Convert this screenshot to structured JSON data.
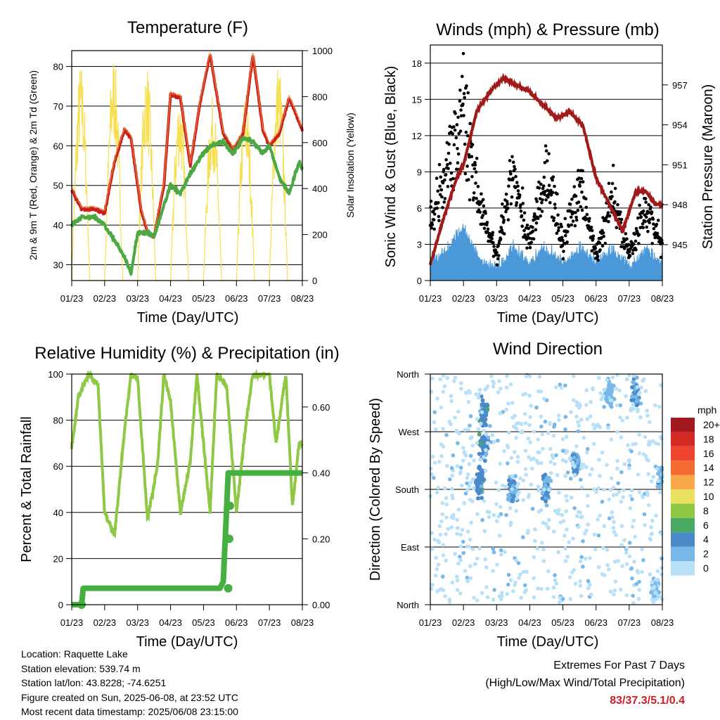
{
  "x_ticks": [
    "01/23",
    "02/23",
    "03/23",
    "04/23",
    "05/23",
    "06/23",
    "07/23",
    "08/23"
  ],
  "colors": {
    "temp2m": "#c81e1e",
    "temp9m": "#f08030",
    "dewpoint": "#4ca845",
    "solar": "#f7df50",
    "gust": "#000000",
    "wind": "#4a98d8",
    "pressure": "#a01a1a",
    "rh": "#8fc845",
    "precip": "#45b040"
  },
  "chart_data": [
    {
      "type": "line",
      "title": "Temperature (F)",
      "xlabel": "Time (Day/UTC)",
      "ylabel": "2m & 9m T (Red, Orange) & 2m Td (Green)",
      "y2label": "Solar Insolation (Yellow)",
      "x_ticks": [
        "01/23",
        "02/23",
        "03/23",
        "04/23",
        "05/23",
        "06/23",
        "07/23",
        "08/23"
      ],
      "ylim": [
        26,
        84
      ],
      "y_ticks": [
        30,
        40,
        50,
        60,
        70,
        80
      ],
      "y2lim": [
        0,
        1000
      ],
      "y2_ticks": [
        0,
        200,
        400,
        600,
        800,
        1000
      ],
      "grid": true,
      "series": [
        {
          "name": "2m T",
          "color": "#c81e1e",
          "x": [
            0,
            0.3,
            0.7,
            1.0,
            1.3,
            1.6,
            1.8,
            2.1,
            2.3,
            2.5,
            2.8,
            3.0,
            3.3,
            3.6,
            3.9,
            4.2,
            4.6,
            4.9,
            5.2,
            5.5,
            5.8,
            6.0,
            6.3,
            6.6,
            6.9,
            7.0
          ],
          "values": [
            49,
            44,
            44,
            43,
            56,
            64,
            62,
            44,
            38,
            37,
            50,
            73,
            72,
            55,
            71,
            83,
            63,
            59,
            63,
            83,
            64,
            60,
            63,
            72,
            66,
            64
          ]
        },
        {
          "name": "Td",
          "color": "#4ca845",
          "x": [
            0,
            0.3,
            0.7,
            1.0,
            1.3,
            1.6,
            1.8,
            2.0,
            2.3,
            2.5,
            2.8,
            3.0,
            3.3,
            3.6,
            3.9,
            4.2,
            4.6,
            4.9,
            5.2,
            5.5,
            5.8,
            6.0,
            6.3,
            6.6,
            6.9,
            7.0
          ],
          "values": [
            40,
            42,
            42,
            40,
            36,
            32,
            28,
            38,
            38,
            37,
            45,
            50,
            48,
            53,
            57,
            60,
            61,
            58,
            62,
            61,
            58,
            60,
            52,
            48,
            56,
            54
          ]
        },
        {
          "name": "Solar",
          "axis": "y2",
          "color": "#f7df50",
          "x": [
            0.15,
            0.55,
            1.0,
            1.5,
            2.0,
            2.5,
            3.0,
            3.5,
            4.0,
            4.5,
            5.0,
            5.5,
            6.0,
            6.5,
            7.0
          ],
          "values": [
            0,
            950,
            0,
            990,
            0,
            950,
            0,
            820,
            0,
            800,
            0,
            820,
            0,
            960,
            0
          ]
        }
      ]
    },
    {
      "type": "line",
      "title": "Winds (mph) & Pressure (mb)",
      "xlabel": "Time (Day/UTC)",
      "ylabel": "Sonic Wind & Gust (Blue, Black)",
      "y2label": "Station Pressure (Maroon)",
      "x_ticks": [
        "01/23",
        "02/23",
        "03/23",
        "04/23",
        "05/23",
        "06/23",
        "07/23",
        "08/23"
      ],
      "ylim": [
        0,
        19.5
      ],
      "y_ticks": [
        0,
        3,
        6,
        9,
        12,
        15,
        18
      ],
      "y2lim": [
        942.3,
        960.0
      ],
      "y2_ticks": [
        945,
        948,
        951,
        954,
        957
      ],
      "grid": true,
      "series": [
        {
          "name": "Gust",
          "color": "#000000",
          "x": [
            0,
            0.5,
            1.0,
            1.5,
            2.0,
            2.5,
            3.0,
            3.5,
            4.0,
            4.5,
            5.0,
            5.5,
            6.0,
            6.5,
            7.0
          ],
          "values": [
            5,
            9,
            14,
            6,
            2,
            9,
            3,
            9,
            3,
            8,
            2,
            7,
            2,
            6,
            3
          ]
        },
        {
          "name": "Wind",
          "color": "#4a98d8",
          "x": [
            0,
            0.5,
            1.0,
            1.5,
            2.0,
            2.5,
            3.0,
            3.5,
            4.0,
            4.5,
            5.0,
            5.5,
            6.0,
            6.5,
            7.0
          ],
          "values": [
            1,
            2,
            4,
            1,
            0.5,
            2,
            1,
            2,
            1,
            2,
            1,
            2,
            0.5,
            2,
            1
          ]
        },
        {
          "name": "Pressure",
          "axis": "y2",
          "color": "#a01a1a",
          "x": [
            0,
            0.4,
            0.8,
            1.0,
            1.4,
            1.8,
            2.2,
            2.6,
            3.0,
            3.4,
            3.8,
            4.2,
            4.6,
            5.0,
            5.4,
            5.8,
            6.2,
            6.5,
            6.8,
            7.0
          ],
          "values": [
            943.5,
            947,
            950,
            951,
            955,
            956.5,
            957.5,
            957,
            956.5,
            955.5,
            954.5,
            955,
            954,
            950,
            948,
            946,
            949,
            949,
            948,
            948
          ]
        }
      ]
    },
    {
      "type": "line",
      "title": "Relative Humidity (%) & Precipitation (in)",
      "xlabel": "Time (Day/UTC)",
      "ylabel": "Percent & Total Rainfall",
      "x_ticks": [
        "01/23",
        "02/23",
        "03/23",
        "04/23",
        "05/23",
        "06/23",
        "07/23",
        "08/23"
      ],
      "ylim": [
        0,
        100
      ],
      "y_ticks": [
        0,
        20,
        40,
        60,
        80,
        100
      ],
      "y2lim": [
        0,
        0.7
      ],
      "y2_ticks": [
        "0.00",
        "0.20",
        "0.40",
        "0.60"
      ],
      "grid": true,
      "series": [
        {
          "name": "RH",
          "color": "#8fc845",
          "x": [
            0,
            0.2,
            0.5,
            0.8,
            1.0,
            1.3,
            1.6,
            1.8,
            2.0,
            2.3,
            2.6,
            2.8,
            3.0,
            3.3,
            3.6,
            3.8,
            4.0,
            4.2,
            4.4,
            4.7,
            5.0,
            5.3,
            5.5,
            5.7,
            6.0,
            6.2,
            6.5,
            6.7,
            6.9,
            7.0
          ],
          "values": [
            68,
            90,
            100,
            95,
            40,
            30,
            75,
            100,
            98,
            37,
            60,
            100,
            88,
            40,
            62,
            100,
            70,
            40,
            100,
            95,
            40,
            80,
            100,
            100,
            100,
            70,
            100,
            42,
            70,
            70
          ]
        },
        {
          "name": "Precip",
          "axis": "y2",
          "color": "#45b040",
          "x": [
            0,
            0.3,
            0.35,
            4.5,
            4.6,
            4.75,
            4.8,
            7.0
          ],
          "values": [
            0,
            0,
            0.05,
            0.05,
            0.07,
            0.4,
            0.4,
            0.4
          ]
        }
      ]
    },
    {
      "type": "scatter",
      "title": "Wind Direction",
      "xlabel": "Time (Day/UTC)",
      "ylabel": "Direction (Colored By Speed)",
      "x_ticks": [
        "01/23",
        "02/23",
        "03/23",
        "04/23",
        "05/23",
        "06/23",
        "07/23",
        "08/23"
      ],
      "y_ticks": [
        "North",
        "East",
        "South",
        "West",
        "North"
      ],
      "ylim": [
        0,
        360
      ],
      "grid": true,
      "legend": {
        "title": "mph",
        "placement": "right",
        "labels": [
          "20+",
          "18",
          "16",
          "14",
          "12",
          "10",
          "8",
          "6",
          "4",
          "2",
          "0"
        ],
        "colors": [
          "#a01a20",
          "#d42a26",
          "#ee4430",
          "#f36b30",
          "#f9a94a",
          "#e9e060",
          "#8fc845",
          "#4aa865",
          "#4a8ac8",
          "#78b8e8",
          "#b8e0f8"
        ]
      },
      "clusters": [
        {
          "x": 1.5,
          "dir": 190,
          "speed": 4
        },
        {
          "x": 1.6,
          "dir": 250,
          "speed": 4
        },
        {
          "x": 1.6,
          "dir": 300,
          "speed": 4
        },
        {
          "x": 2.5,
          "dir": 180,
          "speed": 3
        },
        {
          "x": 3.5,
          "dir": 180,
          "speed": 3
        },
        {
          "x": 4.4,
          "dir": 220,
          "speed": 3
        },
        {
          "x": 5.4,
          "dir": 330,
          "speed": 2
        },
        {
          "x": 6.2,
          "dir": 330,
          "speed": 3
        },
        {
          "x": 6.8,
          "dir": 20,
          "speed": 1
        },
        {
          "x": 7.0,
          "dir": 200,
          "speed": 2
        }
      ]
    }
  ],
  "info": {
    "location": "Location: Raquette Lake",
    "elevation": "Station elevation: 539.74 m",
    "latlon": "Station lat/lon: 43.8228; -74.6251",
    "created": "Figure created on Sun, 2025-06-08, at 23:52 UTC",
    "recent": "Most recent data timestamp: 2025/06/08 23:15:00"
  },
  "extremes": {
    "title": "Extremes For Past 7 Days",
    "subtitle": "(High/Low/Max Wind/Total Precipitation)",
    "value": "83/37.3/5.1/0.4"
  }
}
